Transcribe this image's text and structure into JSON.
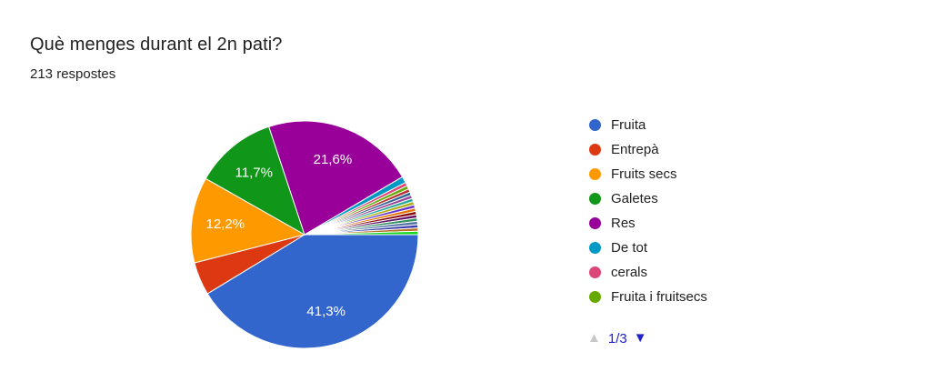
{
  "header": {
    "title": "Què menges durant el 2n pati?",
    "subtitle": "213 respostes"
  },
  "chart_data": {
    "type": "pie",
    "title": "Què menges durant el 2n pati?",
    "subtitle": "213 respostes",
    "legend_position": "right",
    "start_angle_deg_from_east": 0,
    "direction": "clockwise",
    "slices": [
      {
        "label": "Fruita",
        "value": 41.3,
        "display": "41,3%",
        "color": "#3366CC"
      },
      {
        "label": "Entrepà",
        "value": 4.7,
        "display": "",
        "color": "#DC3912"
      },
      {
        "label": "Fruits secs",
        "value": 12.2,
        "display": "12,2%",
        "color": "#FF9900"
      },
      {
        "label": "Galetes",
        "value": 11.7,
        "display": "11,7%",
        "color": "#109618"
      },
      {
        "label": "Res",
        "value": 21.6,
        "display": "21,6%",
        "color": "#990099"
      },
      {
        "label": "De tot",
        "value": 0.9,
        "display": "",
        "color": "#0099C6"
      },
      {
        "label": "cerals",
        "value": 0.5,
        "display": "",
        "color": "#DD4477"
      },
      {
        "label": "Fruita i fruitsecs",
        "value": 0.5,
        "display": "",
        "color": "#66AA00"
      },
      {
        "label": "",
        "value": 0.47,
        "display": "",
        "color": "#B82E2E"
      },
      {
        "label": "",
        "value": 0.47,
        "display": "",
        "color": "#316395"
      },
      {
        "label": "",
        "value": 0.47,
        "display": "",
        "color": "#994499"
      },
      {
        "label": "",
        "value": 0.47,
        "display": "",
        "color": "#22AA99"
      },
      {
        "label": "",
        "value": 0.47,
        "display": "",
        "color": "#AAAA11"
      },
      {
        "label": "",
        "value": 0.47,
        "display": "",
        "color": "#6633CC"
      },
      {
        "label": "",
        "value": 0.47,
        "display": "",
        "color": "#E67300"
      },
      {
        "label": "",
        "value": 0.47,
        "display": "",
        "color": "#8B0707"
      },
      {
        "label": "",
        "value": 0.47,
        "display": "",
        "color": "#651067"
      },
      {
        "label": "",
        "value": 0.47,
        "display": "",
        "color": "#329262"
      },
      {
        "label": "",
        "value": 0.47,
        "display": "",
        "color": "#5574A6"
      },
      {
        "label": "",
        "value": 0.47,
        "display": "",
        "color": "#3B3EAC"
      },
      {
        "label": "",
        "value": 0.47,
        "display": "",
        "color": "#B77322"
      },
      {
        "label": "",
        "value": 0.47,
        "display": "",
        "color": "#16D620"
      }
    ],
    "legend": [
      {
        "label": "Fruita",
        "color": "#3366CC"
      },
      {
        "label": "Entrepà",
        "color": "#DC3912"
      },
      {
        "label": "Fruits secs",
        "color": "#FF9900"
      },
      {
        "label": "Galetes",
        "color": "#109618"
      },
      {
        "label": "Res",
        "color": "#990099"
      },
      {
        "label": "De tot",
        "color": "#0099C6"
      },
      {
        "label": "cerals",
        "color": "#DD4477"
      },
      {
        "label": "Fruita i fruitsecs",
        "color": "#66AA00"
      }
    ]
  },
  "pagination": {
    "page_label": "1/3",
    "prev_icon": "▲",
    "next_icon": "▼",
    "prev_enabled": false,
    "next_enabled": true,
    "active_color": "#2222cc",
    "disabled_color": "#c8c8c8"
  }
}
